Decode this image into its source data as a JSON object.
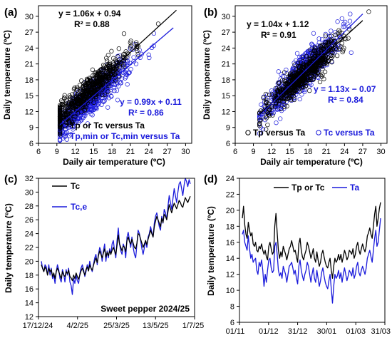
{
  "chart_data": [
    {
      "panel": "(a)",
      "type": "scatter",
      "xlabel": "Daily air temperature (ºC)",
      "ylabel": "Daily temperature (ºC)",
      "xlim": [
        6,
        31
      ],
      "ylim": [
        6,
        32
      ],
      "xticks": [
        6,
        9,
        12,
        15,
        18,
        21,
        24,
        27,
        30
      ],
      "yticks": [
        6,
        9,
        12,
        15,
        18,
        21,
        24,
        27,
        30
      ],
      "series": [
        {
          "name": "Tp or Tc versus Ta",
          "color": "#000000",
          "x_range": [
            9.5,
            28.5
          ],
          "slope": 1.06,
          "intercept": 0.94,
          "equation": "y = 1.06x + 0.94",
          "r2": "R² = 0.88"
        },
        {
          "name": "Tp,min or Tc,min versus Ta",
          "color": "#1a1adb",
          "x_range": [
            9.5,
            28
          ],
          "slope": 0.99,
          "intercept": 0.11,
          "equation": "y = 0.99x + 0.11",
          "r2": "R² = 0.86"
        }
      ]
    },
    {
      "panel": "(b)",
      "type": "scatter",
      "xlabel": "Daily air temperature (ºC)",
      "ylabel": "Daily temperature (ºC)",
      "xlim": [
        6,
        31
      ],
      "ylim": [
        6,
        32
      ],
      "xticks": [
        6,
        9,
        12,
        15,
        18,
        21,
        24,
        27,
        30
      ],
      "yticks": [
        6,
        9,
        12,
        15,
        18,
        21,
        24,
        27,
        30
      ],
      "series": [
        {
          "name": "Tp versus Ta",
          "color": "#000000",
          "x_range": [
            10,
            27
          ],
          "slope": 1.04,
          "intercept": 1.12,
          "equation": "y = 1.04x + 1.12",
          "r2": "R² = 0.91"
        },
        {
          "name": "Tc versus Ta",
          "color": "#1a1adb",
          "x_range": [
            10,
            27
          ],
          "slope": 1.13,
          "intercept": -0.07,
          "equation": "y = 1.13x − 0.07",
          "r2": "R² = 0.84"
        }
      ]
    },
    {
      "panel": "(c)",
      "type": "line",
      "ylabel": "Daily temperature (ºC)",
      "annotation": "Sweet pepper 2024/25",
      "ylim": [
        12,
        32
      ],
      "yticks": [
        12,
        14,
        16,
        18,
        20,
        22,
        24,
        26,
        28,
        30,
        32
      ],
      "xticklabels": [
        "17/12/24",
        "4/2/25",
        "25/3/25",
        "13/5/25",
        "1/7/25"
      ],
      "series": [
        {
          "name": "Tc",
          "color": "#000000",
          "values": [
            19.5,
            19.0,
            18.5,
            19.2,
            18.8,
            18.0,
            19.0,
            18.5,
            18.8,
            17.8,
            18.3,
            17.5,
            18.5,
            19.0,
            18.5,
            18.0,
            17.5,
            18.5,
            18.0,
            17.8,
            18.5,
            18.2,
            18.7,
            17.8,
            17.6,
            17.2,
            18.0,
            17.5,
            18.3,
            17.8,
            17.4,
            18.0,
            18.6,
            19.0,
            18.5,
            18.0,
            18.8,
            19.2,
            18.6,
            19.5,
            19.0,
            18.7,
            19.4,
            20.0,
            20.5,
            19.8,
            20.8,
            21.5,
            21.0,
            20.5,
            21.2,
            21.8,
            20.6,
            21.3,
            20.8,
            21.5,
            21.0,
            21.6,
            22.0,
            21.5,
            21.0,
            22.3,
            23.8,
            22.5,
            22.0,
            21.5,
            22.2,
            22.0,
            21.4,
            23.0,
            23.5,
            22.8,
            22.5,
            23.2,
            22.6,
            22.0,
            21.8,
            22.6,
            24.0,
            23.8,
            23.2,
            22.6,
            22.0,
            22.5,
            23.0,
            22.4,
            23.2,
            23.8,
            24.5,
            24.0,
            23.5,
            25.0,
            25.8,
            26.5,
            26.0,
            25.5,
            25.0,
            26.2,
            25.6,
            26.8,
            26.5,
            26.0,
            27.2,
            28.2,
            27.6,
            27.0,
            27.8,
            28.4,
            28.0,
            27.6,
            28.2,
            28.8,
            28.5,
            28.0,
            27.8,
            28.6,
            29.2,
            28.8,
            28.5,
            29.0,
            29.4
          ]
        },
        {
          "name": "Tc,e",
          "color": "#1a1adb",
          "values": [
            20.0,
            19.0,
            18.5,
            19.5,
            19.2,
            18.0,
            19.5,
            18.0,
            19.0,
            17.5,
            18.0,
            16.8,
            18.5,
            19.5,
            18.8,
            17.5,
            17.0,
            18.8,
            18.2,
            17.0,
            18.8,
            18.0,
            19.0,
            17.0,
            16.5,
            15.2,
            17.5,
            16.8,
            18.0,
            17.2,
            16.8,
            18.2,
            19.0,
            19.5,
            18.8,
            17.8,
            18.5,
            19.5,
            18.8,
            20.0,
            19.0,
            18.5,
            19.5,
            20.5,
            21.0,
            19.5,
            21.0,
            22.0,
            21.5,
            20.0,
            21.5,
            22.5,
            20.0,
            21.5,
            20.5,
            21.8,
            21.0,
            22.5,
            23.0,
            21.5,
            20.5,
            23.0,
            24.8,
            22.5,
            21.5,
            21.0,
            22.5,
            22.0,
            20.5,
            23.5,
            24.2,
            23.0,
            22.0,
            23.5,
            22.0,
            21.0,
            20.5,
            22.5,
            24.5,
            24.0,
            23.0,
            21.8,
            21.0,
            22.0,
            23.0,
            22.0,
            23.5,
            24.0,
            25.0,
            24.2,
            23.5,
            25.5,
            26.5,
            27.0,
            26.0,
            25.0,
            24.5,
            26.5,
            25.5,
            27.5,
            27.0,
            26.0,
            28.0,
            29.5,
            28.5,
            27.5,
            29.0,
            30.5,
            29.5,
            28.5,
            30.0,
            31.2,
            31.5,
            30.5,
            29.5,
            31.0,
            32.0,
            31.5,
            30.8,
            31.8,
            31.2
          ]
        }
      ]
    },
    {
      "panel": "(d)",
      "type": "line",
      "ylabel": "Daily temperature (ºC)",
      "ylim": [
        6,
        24
      ],
      "yticks": [
        6,
        8,
        10,
        12,
        14,
        16,
        18,
        20,
        22,
        24
      ],
      "xticklabels": [
        "01/11",
        "01/12",
        "31/12",
        "30/01",
        "01/03",
        "31/03"
      ],
      "series": [
        {
          "name": "Tp or Tc",
          "color": "#000000",
          "values": [
            19.0,
            20.5,
            18.2,
            17.0,
            16.5,
            18.5,
            17.5,
            16.8,
            17.2,
            15.8,
            15.5,
            16.0,
            15.0,
            14.8,
            15.5,
            15.2,
            15.8,
            15.0,
            14.5,
            15.0,
            14.2,
            13.8,
            15.5,
            16.0,
            15.2,
            14.5,
            14.8,
            18.0,
            19.6,
            17.2,
            15.0,
            14.0,
            14.8,
            14.2,
            15.5,
            15.0,
            14.5,
            13.8,
            14.5,
            15.2,
            15.5,
            16.2,
            15.5,
            14.8,
            15.0,
            14.2,
            13.5,
            15.8,
            16.5,
            15.0,
            14.2,
            13.8,
            14.5,
            15.0,
            16.0,
            15.5,
            14.8,
            14.0,
            14.5,
            15.2,
            14.0,
            13.5,
            14.8,
            13.8,
            13.0,
            13.5,
            14.5,
            15.0,
            14.2,
            13.5,
            13.0,
            12.8,
            13.5,
            14.0,
            12.5,
            11.5,
            13.0,
            14.0,
            13.5,
            13.8,
            14.5,
            13.8,
            14.5,
            13.5,
            14.2,
            15.0,
            14.5,
            13.8,
            14.2,
            15.0,
            14.8,
            14.5,
            15.2,
            14.0,
            14.5,
            15.5,
            16.0,
            15.0,
            14.5,
            15.2,
            15.8,
            15.2,
            14.8,
            15.5,
            16.8,
            17.2,
            17.8,
            17.0,
            16.5,
            18.0,
            19.5,
            20.5,
            18.0,
            19.0,
            20.2,
            21.0
          ]
        },
        {
          "name": "Ta",
          "color": "#1a1adb",
          "values": [
            17.0,
            17.5,
            16.0,
            15.5,
            15.0,
            16.8,
            15.2,
            14.0,
            14.5,
            13.5,
            13.8,
            14.0,
            12.5,
            12.0,
            13.5,
            13.0,
            13.8,
            12.5,
            10.5,
            12.0,
            11.0,
            12.5,
            13.8,
            14.0,
            12.8,
            12.2,
            12.5,
            15.5,
            16.0,
            14.5,
            12.5,
            11.8,
            12.2,
            11.5,
            13.0,
            12.5,
            12.0,
            11.0,
            12.0,
            13.0,
            13.2,
            13.5,
            12.8,
            12.0,
            12.5,
            11.5,
            10.8,
            13.0,
            13.8,
            12.5,
            11.8,
            11.2,
            12.0,
            12.5,
            13.5,
            13.0,
            12.0,
            11.0,
            12.0,
            12.8,
            11.5,
            11.0,
            12.5,
            11.5,
            10.5,
            11.2,
            12.2,
            12.8,
            11.8,
            11.0,
            10.5,
            10.2,
            11.2,
            12.0,
            10.2,
            8.4,
            10.5,
            12.0,
            11.5,
            11.8,
            12.5,
            11.5,
            12.2,
            11.0,
            12.0,
            12.8,
            12.0,
            11.2,
            11.8,
            12.5,
            12.2,
            11.8,
            12.8,
            11.5,
            12.0,
            13.0,
            13.5,
            12.2,
            11.8,
            12.5,
            13.0,
            12.5,
            12.0,
            12.8,
            14.0,
            14.5,
            15.0,
            14.2,
            13.5,
            15.0,
            16.5,
            17.5,
            15.5,
            16.0,
            17.5,
            19.0
          ]
        }
      ]
    }
  ]
}
